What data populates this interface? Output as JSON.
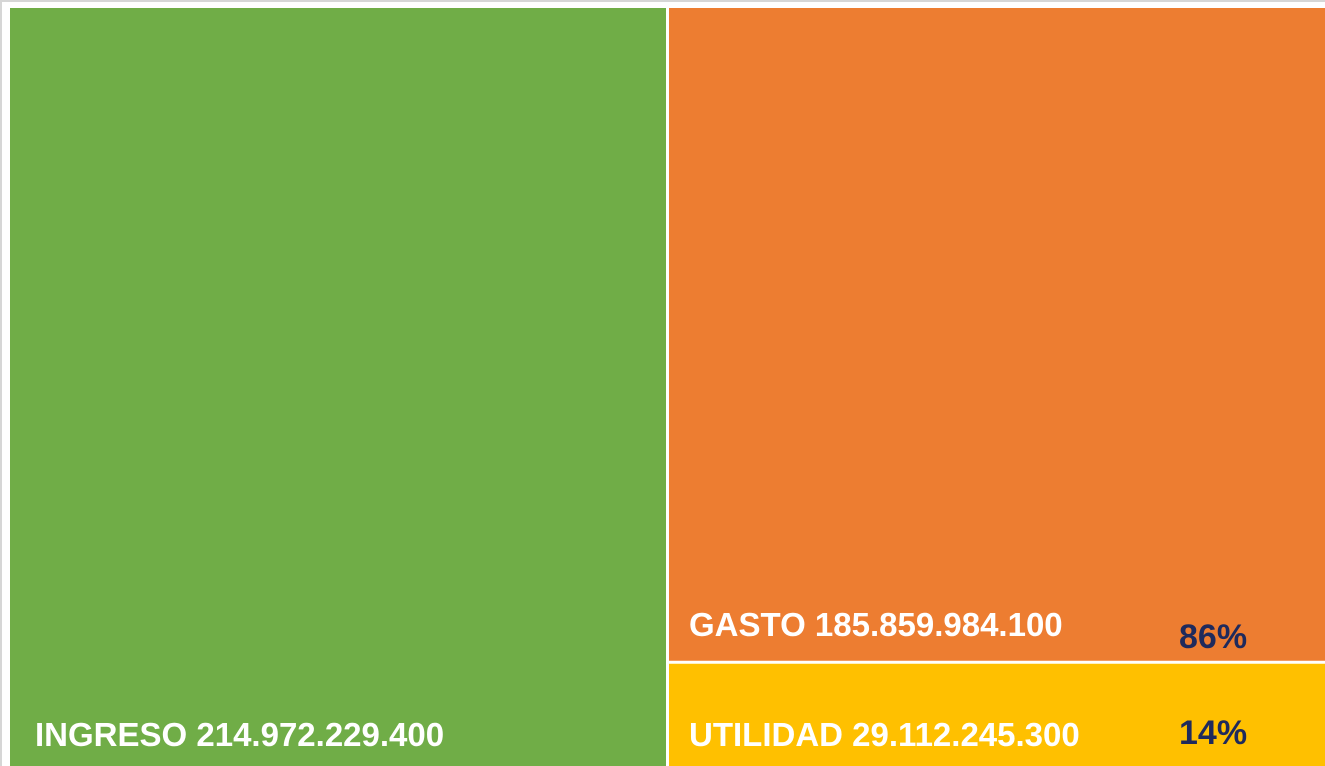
{
  "chart_data": {
    "type": "treemap",
    "categories": [
      "INGRESO",
      "GASTO",
      "UTILIDAD"
    ],
    "values": [
      214972229400,
      185859984100,
      29112245300
    ],
    "value_labels": [
      "214.972.229.400",
      "185.859.984.100",
      "29.112.245.300"
    ],
    "colors": [
      "#70ad47",
      "#ed7d31",
      "#ffc000"
    ],
    "shares": [
      null,
      86,
      14
    ],
    "share_labels": [
      null,
      "86%",
      "14%"
    ]
  }
}
